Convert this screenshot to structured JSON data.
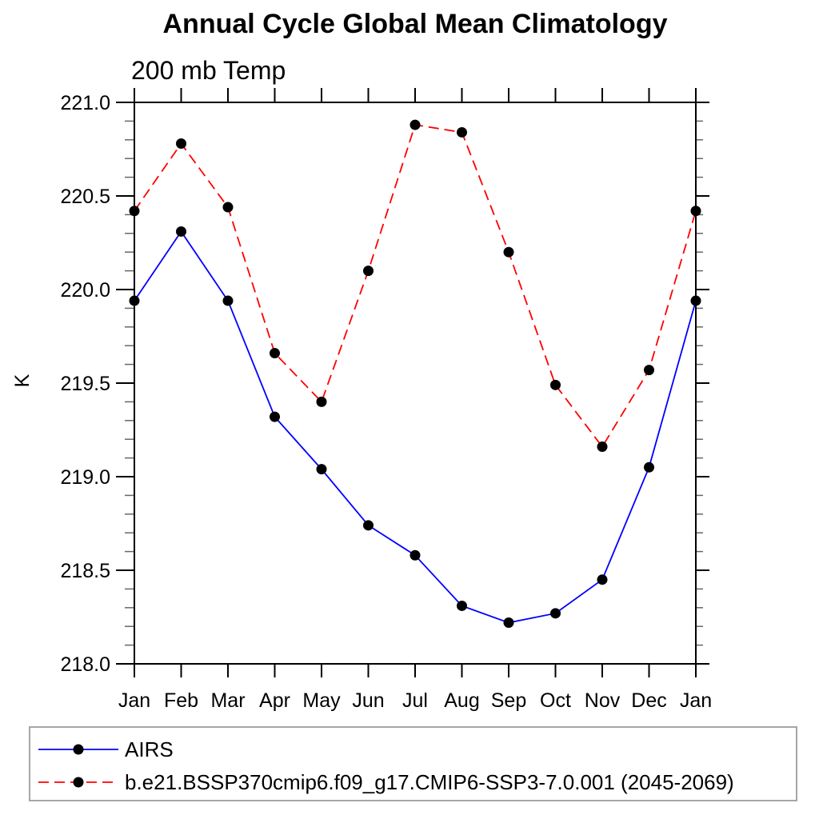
{
  "title": "Annual Cycle Global Mean Climatology",
  "subtitle": "200 mb Temp",
  "ylabel": "K",
  "colors": {
    "axis": "#000000",
    "minor_tick": "#666666",
    "legend_border": "#a6a6a6",
    "airs_line": "#0000ff",
    "model_line": "#ff0000",
    "marker": "#000000"
  },
  "chart_data": {
    "type": "line",
    "title": "Annual Cycle Global Mean Climatology",
    "subtitle": "200 mb Temp",
    "xlabel": "",
    "ylabel": "K",
    "x_categories": [
      "Jan",
      "Feb",
      "Mar",
      "Apr",
      "May",
      "Jun",
      "Jul",
      "Aug",
      "Sep",
      "Oct",
      "Nov",
      "Dec",
      "Jan"
    ],
    "ylim": [
      218.0,
      221.0
    ],
    "ytick_labels": [
      "221.0",
      "220.5",
      "220.0",
      "219.5",
      "219.0",
      "218.5",
      "218.0"
    ],
    "ytick_step": 0.5,
    "yminor_step": 0.1,
    "grid": false,
    "legend_position": "bottom-left-box",
    "series": [
      {
        "name": "AIRS",
        "color": "#0000ff",
        "line_style": "solid",
        "marker": "circle",
        "marker_color": "#000000",
        "values": [
          219.94,
          220.31,
          219.94,
          219.32,
          219.04,
          218.74,
          218.58,
          218.31,
          218.22,
          218.27,
          218.45,
          219.05,
          219.94
        ]
      },
      {
        "name": "b.e21.BSSP370cmip6.f09_g17.CMIP6-SSP3-7.0.001 (2045-2069)",
        "color": "#ff0000",
        "line_style": "dashed",
        "marker": "circle",
        "marker_color": "#000000",
        "values": [
          220.42,
          220.78,
          220.44,
          219.66,
          219.4,
          220.1,
          220.88,
          220.84,
          220.2,
          219.49,
          219.16,
          219.57,
          220.42
        ]
      }
    ]
  }
}
